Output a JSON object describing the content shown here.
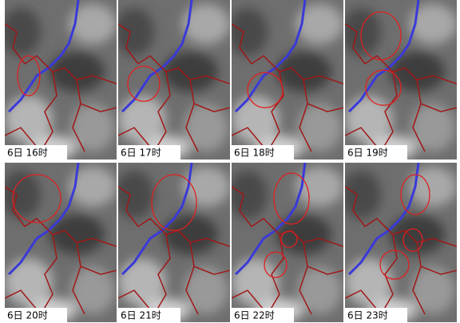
{
  "panels": [
    {
      "label": "6日 16时"
    },
    {
      "label": "6日 17时"
    },
    {
      "label": "6日 18时"
    },
    {
      "label": "6日 19时"
    },
    {
      "label": "6日 20时"
    },
    {
      "label": "6日 21时"
    },
    {
      "label": "6日 22时"
    },
    {
      "label": "6日 23时"
    }
  ]
}
